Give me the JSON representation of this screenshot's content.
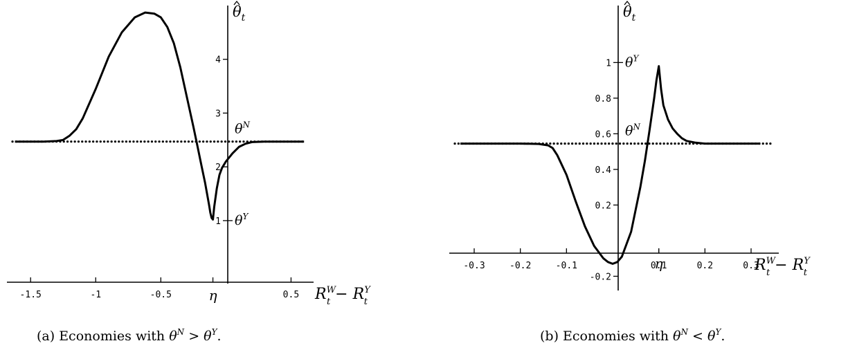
{
  "chart_data": [
    {
      "type": "line",
      "caption_text": "(a) Economies with ",
      "caption_expr": [
        "θ",
        "N",
        " > ",
        "θ",
        "Y",
        "."
      ],
      "xlabel_parts": [
        "R",
        "W",
        "t",
        " − ",
        "R",
        "Y",
        "t"
      ],
      "ylabel_parts": [
        "θ",
        "t"
      ],
      "xlim": [
        -1.65,
        0.62
      ],
      "ylim": [
        -0.3,
        5.0
      ],
      "x_ticks": [
        {
          "v": -1.5,
          "label": "-1.5"
        },
        {
          "v": -1.0,
          "label": "-1"
        },
        {
          "v": -0.5,
          "label": "-0.5"
        },
        {
          "v": 0.5,
          "label": "0.5"
        }
      ],
      "y_ticks": [
        {
          "v": 1,
          "label": "1"
        },
        {
          "v": 2,
          "label": "2"
        },
        {
          "v": 3,
          "label": "3"
        },
        {
          "v": 4,
          "label": "4"
        }
      ],
      "eta": {
        "x": -0.1,
        "label": "η"
      },
      "reference_line": {
        "y": 2.47,
        "label": "θ",
        "sup": "N"
      },
      "theta_y_mark": {
        "y": 1.0,
        "label": "θ",
        "sup": "Y"
      },
      "series": [
        {
          "x": [
            -1.62,
            -1.4,
            -1.3,
            -1.25,
            -1.2,
            -1.15,
            -1.1,
            -1.0,
            -0.9,
            -0.8,
            -0.7,
            -0.62,
            -0.55,
            -0.5,
            -0.45,
            -0.4,
            -0.35,
            -0.3,
            -0.25,
            -0.22,
            -0.19,
            -0.16,
            -0.13,
            -0.12,
            -0.11,
            -0.1,
            -0.09,
            -0.07,
            -0.05,
            -0.03,
            0.0,
            0.05,
            0.1,
            0.15,
            0.2,
            0.3,
            0.45,
            0.6
          ],
          "y": [
            2.47,
            2.47,
            2.48,
            2.5,
            2.58,
            2.7,
            2.9,
            3.45,
            4.05,
            4.5,
            4.78,
            4.87,
            4.85,
            4.78,
            4.6,
            4.3,
            3.85,
            3.3,
            2.75,
            2.4,
            2.05,
            1.7,
            1.3,
            1.15,
            1.05,
            1.02,
            1.25,
            1.6,
            1.85,
            1.98,
            2.1,
            2.25,
            2.37,
            2.43,
            2.46,
            2.47,
            2.47,
            2.47
          ]
        }
      ]
    },
    {
      "type": "line",
      "caption_text": "(b) Economies with ",
      "caption_expr": [
        "θ",
        "N",
        " < ",
        "θ",
        "Y",
        "."
      ],
      "xlabel_parts": [
        "R",
        "W",
        "t",
        " − ",
        "R",
        "Y",
        "t"
      ],
      "ylabel_parts": [
        "θ",
        "t"
      ],
      "xlim": [
        -0.345,
        0.345
      ],
      "ylim": [
        -0.28,
        1.32
      ],
      "x_ticks": [
        {
          "v": -0.3,
          "label": "-0.3"
        },
        {
          "v": -0.2,
          "label": "-0.2"
        },
        {
          "v": -0.1,
          "label": "-0.1"
        },
        {
          "v": 0.1,
          "label": "0.1"
        },
        {
          "v": 0.2,
          "label": "0.2"
        },
        {
          "v": 0.3,
          "label": "0.3"
        }
      ],
      "y_ticks": [
        {
          "v": -0.2,
          "label": "-0.2"
        },
        {
          "v": 0.2,
          "label": "0.2"
        },
        {
          "v": 0.4,
          "label": "0.4"
        },
        {
          "v": 0.6,
          "label": "0.6"
        },
        {
          "v": 0.8,
          "label": "0.8"
        },
        {
          "v": 1.0,
          "label": "1"
        }
      ],
      "eta": {
        "x": 0.1,
        "label": "η"
      },
      "reference_line": {
        "y": 0.545,
        "label": "θ",
        "sup": "N"
      },
      "theta_y_mark": {
        "y": 1.0,
        "label": "θ",
        "sup": "Y"
      },
      "series": [
        {
          "x": [
            -0.33,
            -0.2,
            -0.16,
            -0.14,
            -0.13,
            -0.12,
            -0.1,
            -0.08,
            -0.06,
            -0.04,
            -0.02,
            -0.01,
            0.0,
            0.01,
            0.02,
            0.04,
            0.06,
            0.07,
            0.08,
            0.09,
            0.095,
            0.1,
            0.105,
            0.11,
            0.12,
            0.13,
            0.14,
            0.15,
            0.16,
            0.18,
            0.2,
            0.25,
            0.32
          ],
          "y": [
            0.545,
            0.545,
            0.543,
            0.535,
            0.52,
            0.48,
            0.37,
            0.22,
            0.08,
            -0.03,
            -0.1,
            -0.12,
            -0.13,
            -0.12,
            -0.09,
            0.05,
            0.3,
            0.45,
            0.62,
            0.8,
            0.9,
            0.98,
            0.85,
            0.76,
            0.68,
            0.63,
            0.6,
            0.575,
            0.56,
            0.55,
            0.545,
            0.545,
            0.545
          ]
        }
      ]
    }
  ]
}
